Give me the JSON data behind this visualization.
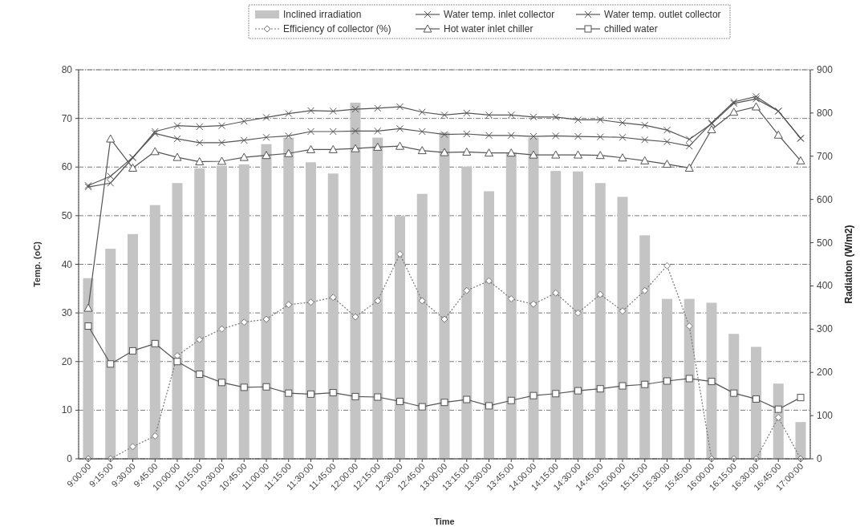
{
  "chart_data": {
    "type": "line",
    "xlabel": "Time",
    "ylabel": "Temp. (oC)",
    "y2label": "Radiation (W/m2)",
    "categories": [
      "9:00:00",
      "9:15:00",
      "9:30:00",
      "9:45:00",
      "10:00:00",
      "10:15:00",
      "10:30:00",
      "10:45:00",
      "11:00:00",
      "11:15:00",
      "11:30:00",
      "11:45:00",
      "12:00:00",
      "12:15:00",
      "12:30:00",
      "12:45:00",
      "13:00:00",
      "13:15:00",
      "13:30:00",
      "13:45:00",
      "14:00:00",
      "14:15:00",
      "14:30:00",
      "14:45:00",
      "15:00:00",
      "15:15:00",
      "15:30:00",
      "15:45:00",
      "16:00:00",
      "16:15:00",
      "16:30:00",
      "16:45:00",
      "17:00:00"
    ],
    "ylim": [
      0,
      80
    ],
    "yticks": [
      0,
      10,
      20,
      30,
      40,
      50,
      60,
      70,
      80
    ],
    "y2lim": [
      0,
      900
    ],
    "y2ticks": [
      0,
      100,
      200,
      300,
      400,
      500,
      600,
      700,
      800,
      900
    ],
    "grid": "y",
    "legend": "top",
    "series": [
      {
        "name": "Inclined irradiation",
        "type": "bar",
        "axis": "y2",
        "color": "#c4c4c4",
        "values": [
          418,
          486,
          520,
          587,
          638,
          672,
          678,
          681,
          728,
          743,
          686,
          660,
          824,
          743,
          562,
          613,
          755,
          676,
          619,
          708,
          743,
          666,
          665,
          638,
          606,
          517,
          370,
          370,
          361,
          289,
          259,
          174,
          85
        ]
      },
      {
        "name": "Water temp. inlet collector",
        "color": "#555555",
        "marker": "cross",
        "line_style": "solid",
        "values": [
          56.2,
          58.1,
          62.0,
          66.9,
          65.8,
          65.0,
          65.0,
          65.5,
          66.1,
          66.4,
          67.3,
          67.3,
          67.4,
          67.4,
          67.9,
          67.3,
          66.7,
          66.8,
          66.5,
          66.5,
          66.3,
          66.4,
          66.3,
          66.2,
          66.1,
          65.6,
          65.2,
          64.3,
          69.1,
          73.4,
          74.5,
          71.5,
          65.9
        ]
      },
      {
        "name": "Water temp. outlet collector",
        "color": "#555555",
        "marker": "cross",
        "line_style": "solid",
        "values": [
          55.9,
          56.7,
          61.9,
          67.3,
          68.5,
          68.3,
          68.5,
          69.4,
          70.2,
          71.0,
          71.6,
          71.5,
          71.9,
          72.1,
          72.4,
          71.3,
          70.7,
          71.1,
          70.7,
          70.7,
          70.3,
          70.3,
          69.7,
          69.7,
          69.1,
          68.6,
          67.6,
          65.7,
          68.9,
          73.1,
          74.0,
          71.5,
          65.9
        ]
      },
      {
        "name": "Efficiency of collector (%)",
        "color": "#777777",
        "marker": "diamond",
        "line_style": "dotted",
        "values": [
          0,
          0,
          2.5,
          4.7,
          21.2,
          24.5,
          26.7,
          28.1,
          28.7,
          31.7,
          32.2,
          33.2,
          29.2,
          32.5,
          42.1,
          32.5,
          28.7,
          34.6,
          36.6,
          32.9,
          31.8,
          34.1,
          30.0,
          33.8,
          30.4,
          34.6,
          39.7,
          27.3,
          0,
          0,
          0,
          8.5,
          0
        ]
      },
      {
        "name": "Hot water inlet chiller",
        "color": "#555555",
        "marker": "triangle",
        "line_style": "solid",
        "values": [
          31.0,
          65.8,
          59.8,
          63.2,
          62.0,
          61.1,
          61.2,
          62.0,
          62.4,
          62.8,
          63.6,
          63.6,
          63.8,
          64.1,
          64.3,
          63.4,
          63.0,
          63.1,
          62.9,
          62.9,
          62.5,
          62.5,
          62.5,
          62.4,
          61.9,
          61.3,
          60.6,
          59.8,
          67.7,
          71.3,
          72.4,
          66.6,
          61.3
        ]
      },
      {
        "name": "chilled water",
        "color": "#555555",
        "marker": "square",
        "line_style": "solid",
        "values": [
          27.3,
          19.5,
          22.2,
          23.7,
          20.0,
          17.4,
          15.7,
          14.7,
          14.8,
          13.5,
          13.3,
          13.6,
          12.8,
          12.7,
          11.8,
          10.7,
          11.6,
          12.2,
          10.9,
          12.0,
          13.0,
          13.4,
          14.0,
          14.4,
          15.0,
          15.3,
          16.0,
          16.5,
          15.9,
          13.5,
          12.3,
          10.2,
          12.6
        ]
      }
    ]
  }
}
